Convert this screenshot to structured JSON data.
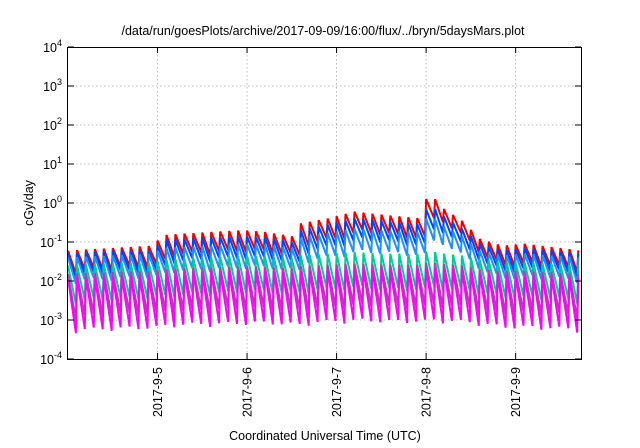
{
  "chart_data": {
    "type": "line",
    "title": "/data/run/goesPlots/archive/2017-09-09/16:00/flux/../bryn/5daysMars.plot",
    "xlabel": "Coordinated Universal Time (UTC)",
    "ylabel": "cGy/day",
    "y_scale": "log",
    "ylim_exp": [
      -4,
      4
    ],
    "y_tick_exponents": [
      -4,
      -3,
      -2,
      -1,
      0,
      1,
      2,
      3,
      4
    ],
    "y_tick_base": "10",
    "xlim_days": [
      4.0,
      9.73
    ],
    "x_ticks": [
      {
        "day": 5,
        "label": "2017-9-5"
      },
      {
        "day": 6,
        "label": "2017-9-6"
      },
      {
        "day": 7,
        "label": "2017-9-7"
      },
      {
        "day": 8,
        "label": "2017-9-8"
      },
      {
        "day": 9,
        "label": "2017-9-9"
      }
    ],
    "grid": true,
    "legend": "none",
    "sawtooth_period_days": 0.1,
    "series": [
      {
        "color": "#ee0000",
        "peak_envelope": [
          [
            4.0,
            0.06
          ],
          [
            4.5,
            0.07
          ],
          [
            4.95,
            0.08
          ],
          [
            5.05,
            0.15
          ],
          [
            5.6,
            0.18
          ],
          [
            5.95,
            0.2
          ],
          [
            6.2,
            0.18
          ],
          [
            6.5,
            0.14
          ],
          [
            6.6,
            0.3
          ],
          [
            6.9,
            0.4
          ],
          [
            7.2,
            0.6
          ],
          [
            7.5,
            0.5
          ],
          [
            7.95,
            0.4
          ],
          [
            8.02,
            2.0
          ],
          [
            8.2,
            0.7
          ],
          [
            8.4,
            0.35
          ],
          [
            8.6,
            0.12
          ],
          [
            8.85,
            0.08
          ],
          [
            9.1,
            0.09
          ],
          [
            9.73,
            0.06
          ]
        ],
        "trough_ratio": 0.3
      },
      {
        "color": "#0044ff",
        "peak_envelope": [
          [
            4.0,
            0.05
          ],
          [
            4.5,
            0.06
          ],
          [
            4.95,
            0.06
          ],
          [
            5.05,
            0.11
          ],
          [
            5.6,
            0.13
          ],
          [
            5.95,
            0.14
          ],
          [
            6.2,
            0.13
          ],
          [
            6.5,
            0.1
          ],
          [
            6.6,
            0.2
          ],
          [
            6.9,
            0.28
          ],
          [
            7.2,
            0.4
          ],
          [
            7.5,
            0.35
          ],
          [
            7.95,
            0.28
          ],
          [
            8.02,
            1.0
          ],
          [
            8.2,
            0.45
          ],
          [
            8.4,
            0.22
          ],
          [
            8.6,
            0.09
          ],
          [
            8.85,
            0.06
          ],
          [
            9.1,
            0.07
          ],
          [
            9.73,
            0.05
          ]
        ],
        "trough_ratio": 0.28
      },
      {
        "color": "#1e90ff",
        "peak_envelope": [
          [
            4.0,
            0.04
          ],
          [
            4.5,
            0.045
          ],
          [
            4.95,
            0.05
          ],
          [
            5.05,
            0.07
          ],
          [
            5.6,
            0.08
          ],
          [
            5.95,
            0.09
          ],
          [
            6.2,
            0.085
          ],
          [
            6.5,
            0.07
          ],
          [
            6.6,
            0.13
          ],
          [
            6.9,
            0.17
          ],
          [
            7.2,
            0.22
          ],
          [
            7.5,
            0.2
          ],
          [
            7.95,
            0.18
          ],
          [
            8.02,
            0.55
          ],
          [
            8.2,
            0.25
          ],
          [
            8.4,
            0.14
          ],
          [
            8.6,
            0.06
          ],
          [
            8.85,
            0.045
          ],
          [
            9.1,
            0.05
          ],
          [
            9.73,
            0.04
          ]
        ],
        "trough_ratio": 0.25
      },
      {
        "color": "#00cc99",
        "peak_envelope": [
          [
            4.0,
            0.025
          ],
          [
            4.5,
            0.028
          ],
          [
            4.95,
            0.03
          ],
          [
            5.05,
            0.035
          ],
          [
            5.6,
            0.04
          ],
          [
            5.95,
            0.045
          ],
          [
            6.2,
            0.042
          ],
          [
            6.5,
            0.038
          ],
          [
            6.6,
            0.045
          ],
          [
            6.9,
            0.05
          ],
          [
            7.2,
            0.055
          ],
          [
            7.5,
            0.05
          ],
          [
            7.95,
            0.05
          ],
          [
            8.02,
            0.06
          ],
          [
            8.2,
            0.05
          ],
          [
            8.4,
            0.045
          ],
          [
            8.6,
            0.035
          ],
          [
            8.85,
            0.03
          ],
          [
            9.1,
            0.03
          ],
          [
            9.73,
            0.025
          ]
        ],
        "trough_ratio": 0.12
      },
      {
        "color": "#aa44aa",
        "peak_envelope": [
          [
            4.0,
            0.015
          ],
          [
            4.5,
            0.017
          ],
          [
            4.95,
            0.018
          ],
          [
            5.05,
            0.02
          ],
          [
            5.6,
            0.022
          ],
          [
            5.95,
            0.024
          ],
          [
            6.2,
            0.023
          ],
          [
            6.5,
            0.021
          ],
          [
            6.6,
            0.024
          ],
          [
            6.9,
            0.026
          ],
          [
            7.2,
            0.028
          ],
          [
            7.5,
            0.026
          ],
          [
            7.95,
            0.026
          ],
          [
            8.02,
            0.03
          ],
          [
            8.2,
            0.027
          ],
          [
            8.4,
            0.025
          ],
          [
            8.6,
            0.02
          ],
          [
            8.85,
            0.018
          ],
          [
            9.1,
            0.018
          ],
          [
            9.73,
            0.015
          ]
        ],
        "trough_ratio": 0.08
      },
      {
        "color": "#ff00ff",
        "peak_envelope": [
          [
            4.0,
            0.012
          ],
          [
            4.5,
            0.013
          ],
          [
            4.95,
            0.014
          ],
          [
            5.05,
            0.016
          ],
          [
            5.6,
            0.017
          ],
          [
            5.95,
            0.018
          ],
          [
            6.2,
            0.018
          ],
          [
            6.5,
            0.016
          ],
          [
            6.6,
            0.018
          ],
          [
            6.9,
            0.02
          ],
          [
            7.2,
            0.021
          ],
          [
            7.5,
            0.02
          ],
          [
            7.95,
            0.02
          ],
          [
            8.02,
            0.022
          ],
          [
            8.2,
            0.02
          ],
          [
            8.4,
            0.019
          ],
          [
            8.6,
            0.016
          ],
          [
            8.85,
            0.014
          ],
          [
            9.1,
            0.014
          ],
          [
            9.73,
            0.012
          ]
        ],
        "trough_ratio": 0.045
      }
    ]
  }
}
